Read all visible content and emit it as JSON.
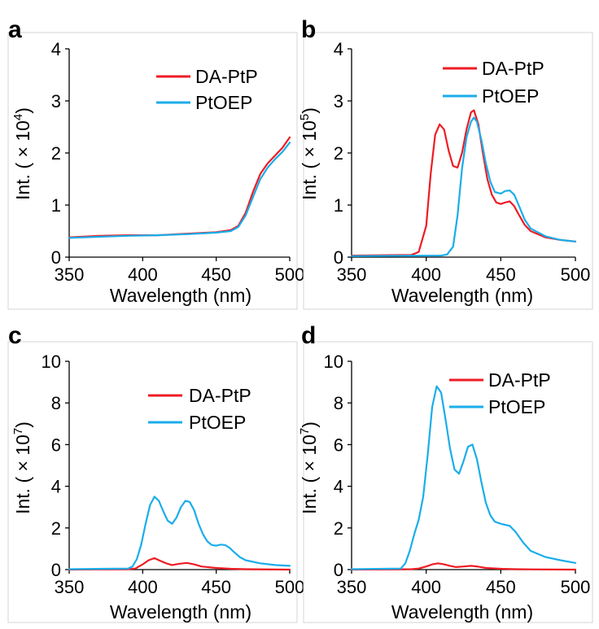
{
  "colors": {
    "da_ptp": "#ee1c24",
    "ptoep": "#1badea"
  },
  "chart_data": [
    {
      "type": "line",
      "panel": "a",
      "ylabel_prefix": "Int. ( × 10",
      "ylabel_exp": "4",
      "ylabel_suffix": ")",
      "xlabel": "Wavelength (nm)",
      "xlim": [
        350,
        500
      ],
      "ylim": [
        0,
        4
      ],
      "xticks": [
        350,
        400,
        450,
        500
      ],
      "yticks": [
        0,
        1,
        2,
        3,
        4
      ],
      "legend": "top-right",
      "series": [
        {
          "name": "DA-PtP",
          "color": "#ee1c24",
          "x": [
            350,
            370,
            390,
            410,
            430,
            450,
            460,
            465,
            470,
            475,
            480,
            485,
            490,
            495,
            500
          ],
          "y": [
            0.38,
            0.41,
            0.42,
            0.42,
            0.45,
            0.48,
            0.52,
            0.6,
            0.85,
            1.25,
            1.6,
            1.8,
            1.95,
            2.1,
            2.3
          ]
        },
        {
          "name": "PtOEP",
          "color": "#1badea",
          "x": [
            350,
            370,
            390,
            410,
            430,
            450,
            460,
            465,
            470,
            475,
            480,
            485,
            490,
            495,
            500
          ],
          "y": [
            0.37,
            0.39,
            0.41,
            0.42,
            0.44,
            0.47,
            0.5,
            0.58,
            0.8,
            1.15,
            1.5,
            1.72,
            1.88,
            2.02,
            2.2
          ]
        }
      ]
    },
    {
      "type": "line",
      "panel": "b",
      "ylabel_prefix": "Int. ( × 10",
      "ylabel_exp": "5",
      "ylabel_suffix": ")",
      "xlabel": "Wavelength (nm)",
      "xlim": [
        350,
        500
      ],
      "ylim": [
        0,
        4
      ],
      "xticks": [
        350,
        400,
        450,
        500
      ],
      "yticks": [
        0,
        1,
        2,
        3,
        4
      ],
      "legend": "top-right",
      "series": [
        {
          "name": "DA-PtP",
          "color": "#ee1c24",
          "x": [
            350,
            390,
            395,
            400,
            403,
            406,
            409,
            412,
            415,
            418,
            421,
            424,
            427,
            430,
            432,
            435,
            438,
            441,
            444,
            447,
            450,
            453,
            456,
            459,
            462,
            466,
            470,
            480,
            490,
            500
          ],
          "y": [
            0.03,
            0.04,
            0.1,
            0.6,
            1.6,
            2.35,
            2.55,
            2.45,
            2.05,
            1.75,
            1.72,
            2.0,
            2.45,
            2.78,
            2.82,
            2.55,
            2.0,
            1.5,
            1.2,
            1.05,
            1.02,
            1.05,
            1.07,
            0.98,
            0.82,
            0.62,
            0.5,
            0.38,
            0.33,
            0.3
          ]
        },
        {
          "name": "PtOEP",
          "color": "#1badea",
          "x": [
            350,
            410,
            414,
            418,
            421,
            424,
            427,
            430,
            432,
            434,
            437,
            440,
            443,
            446,
            450,
            453,
            456,
            459,
            462,
            466,
            470,
            480,
            490,
            500
          ],
          "y": [
            0.02,
            0.03,
            0.05,
            0.2,
            0.8,
            1.7,
            2.3,
            2.6,
            2.68,
            2.6,
            2.25,
            1.8,
            1.45,
            1.25,
            1.22,
            1.27,
            1.28,
            1.2,
            1.0,
            0.72,
            0.55,
            0.4,
            0.33,
            0.3
          ]
        }
      ]
    },
    {
      "type": "line",
      "panel": "c",
      "ylabel_prefix": "Int. ( × 10",
      "ylabel_exp": "7",
      "ylabel_suffix": ")",
      "xlabel": "Wavelength (nm)",
      "xlim": [
        350,
        500
      ],
      "ylim": [
        0,
        10
      ],
      "xticks": [
        350,
        400,
        450,
        500
      ],
      "yticks": [
        0,
        2,
        4,
        6,
        8,
        10
      ],
      "legend": "top-right",
      "series": [
        {
          "name": "DA-PtP",
          "color": "#ee1c24",
          "x": [
            350,
            390,
            395,
            400,
            404,
            408,
            412,
            416,
            420,
            425,
            430,
            435,
            440,
            450,
            460,
            470,
            500
          ],
          "y": [
            0.0,
            0.02,
            0.05,
            0.25,
            0.45,
            0.55,
            0.42,
            0.3,
            0.22,
            0.28,
            0.32,
            0.25,
            0.15,
            0.08,
            0.04,
            0.02,
            0.0
          ]
        },
        {
          "name": "PtOEP",
          "color": "#1badea",
          "x": [
            350,
            390,
            393,
            396,
            399,
            402,
            405,
            408,
            411,
            414,
            417,
            420,
            423,
            426,
            429,
            432,
            435,
            438,
            441,
            444,
            447,
            450,
            453,
            456,
            459,
            462,
            466,
            470,
            480,
            490,
            500
          ],
          "y": [
            0.02,
            0.05,
            0.15,
            0.5,
            1.2,
            2.2,
            3.1,
            3.5,
            3.3,
            2.8,
            2.35,
            2.2,
            2.5,
            3.0,
            3.3,
            3.25,
            2.85,
            2.2,
            1.7,
            1.35,
            1.18,
            1.15,
            1.2,
            1.18,
            1.05,
            0.85,
            0.6,
            0.45,
            0.3,
            0.22,
            0.18
          ]
        }
      ]
    },
    {
      "type": "line",
      "panel": "d",
      "ylabel_prefix": "Int. ( × 10",
      "ylabel_exp": "7",
      "ylabel_suffix": ")",
      "xlabel": "Wavelength (nm)",
      "xlim": [
        350,
        500
      ],
      "ylim": [
        0,
        10
      ],
      "xticks": [
        350,
        400,
        450,
        500
      ],
      "yticks": [
        0,
        2,
        4,
        6,
        8,
        10
      ],
      "legend": "top-right",
      "series": [
        {
          "name": "DA-PtP",
          "color": "#ee1c24",
          "x": [
            350,
            390,
            395,
            400,
            404,
            408,
            412,
            416,
            420,
            425,
            430,
            435,
            440,
            450,
            460,
            470,
            500
          ],
          "y": [
            0.0,
            0.02,
            0.05,
            0.15,
            0.25,
            0.3,
            0.25,
            0.18,
            0.12,
            0.15,
            0.18,
            0.14,
            0.08,
            0.04,
            0.02,
            0.01,
            0.0
          ]
        },
        {
          "name": "PtOEP",
          "color": "#1badea",
          "x": [
            350,
            383,
            386,
            389,
            392,
            395,
            398,
            401,
            404,
            407,
            410,
            413,
            416,
            419,
            422,
            425,
            428,
            431,
            434,
            437,
            440,
            443,
            446,
            450,
            453,
            456,
            460,
            465,
            470,
            480,
            490,
            500
          ],
          "y": [
            0.02,
            0.05,
            0.3,
            0.9,
            1.7,
            2.4,
            3.5,
            5.5,
            7.8,
            8.8,
            8.5,
            7.2,
            5.8,
            4.8,
            4.6,
            5.2,
            5.9,
            6.0,
            5.3,
            4.2,
            3.2,
            2.6,
            2.3,
            2.2,
            2.15,
            2.1,
            1.8,
            1.3,
            0.9,
            0.6,
            0.45,
            0.32
          ]
        }
      ]
    }
  ]
}
